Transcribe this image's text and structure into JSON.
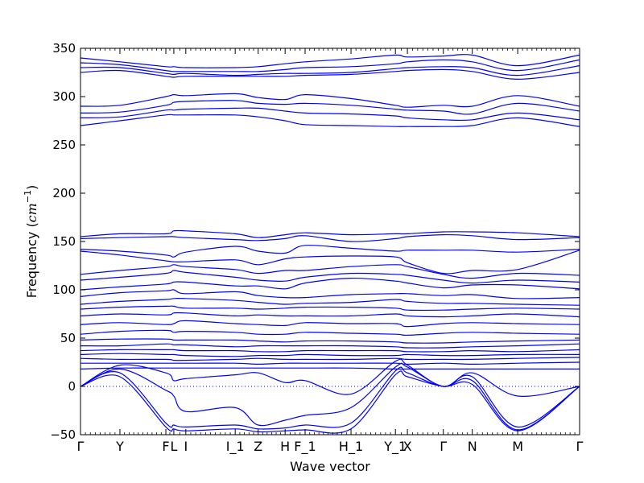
{
  "chart_data": {
    "type": "line",
    "title": "",
    "xlabel": "Wave vector",
    "ylabel_main": "Frequency (",
    "ylabel_unit_base": "cm",
    "ylabel_unit_exp": "−1",
    "ylabel_close": ")",
    "ylim": [
      -50,
      350
    ],
    "yticks": [
      -50,
      0,
      50,
      100,
      150,
      200,
      250,
      300,
      350
    ],
    "xlim": [
      0,
      1
    ],
    "grid": false,
    "zero_line": true,
    "line_color": "#0000ff",
    "high_symmetry_points": [
      {
        "label": "Γ",
        "x": 0.0
      },
      {
        "label": "Y",
        "x": 0.079
      },
      {
        "label": "F",
        "x": 0.171
      },
      {
        "label": "L",
        "x": 0.187
      },
      {
        "label": "I",
        "x": 0.211
      },
      {
        "label": "I_1",
        "x": 0.31
      },
      {
        "label": "Z",
        "x": 0.356
      },
      {
        "label": "H",
        "x": 0.41
      },
      {
        "label": "F_1",
        "x": 0.45
      },
      {
        "label": "H_1",
        "x": 0.542
      },
      {
        "label": "Y_1",
        "x": 0.631
      },
      {
        "label": "X",
        "x": 0.655
      },
      {
        "label": "Γ",
        "x": 0.727
      },
      {
        "label": "N",
        "x": 0.785
      },
      {
        "label": "M",
        "x": 0.876
      },
      {
        "label": "Γ",
        "x": 1.0
      }
    ],
    "series_x": [
      0.0,
      0.079,
      0.171,
      0.187,
      0.211,
      0.31,
      0.356,
      0.41,
      0.45,
      0.542,
      0.631,
      0.655,
      0.727,
      0.785,
      0.876,
      1.0
    ],
    "series": [
      {
        "values": [
          340,
          336,
          331,
          331,
          330,
          330,
          331,
          334,
          336,
          339,
          343,
          341,
          342,
          343,
          332,
          343
        ]
      },
      {
        "values": [
          335,
          333,
          327,
          326,
          326,
          326,
          326,
          328,
          330,
          331,
          334,
          336,
          338,
          336,
          327,
          338
        ]
      },
      {
        "values": [
          330,
          330,
          324,
          323,
          324,
          322,
          323,
          324,
          324,
          325,
          329,
          330,
          331,
          330,
          322,
          332
        ]
      },
      {
        "values": [
          325,
          327,
          321,
          320,
          321,
          321,
          321,
          321,
          322,
          323,
          326,
          327,
          328,
          326,
          318,
          325
        ]
      },
      {
        "values": [
          290,
          291,
          300,
          302,
          301,
          303,
          299,
          297,
          302,
          298,
          291,
          289,
          291,
          290,
          301,
          290
        ]
      },
      {
        "values": [
          283,
          284,
          291,
          294,
          295,
          296,
          293,
          292,
          293,
          291,
          287,
          286,
          285,
          282,
          293,
          285
        ]
      },
      {
        "values": [
          278,
          279,
          286,
          286,
          287,
          288,
          288,
          285,
          283,
          282,
          280,
          278,
          276,
          276,
          283,
          276
        ]
      },
      {
        "values": [
          270,
          275,
          281,
          281,
          281,
          281,
          279,
          275,
          271,
          270,
          269,
          269,
          269,
          270,
          278,
          269
        ]
      },
      {
        "values": [
          155,
          158,
          158,
          161,
          161,
          158,
          154,
          157,
          159,
          157,
          158,
          158,
          160,
          160,
          159,
          155
        ]
      },
      {
        "values": [
          153,
          154,
          155,
          155,
          154,
          152,
          151,
          153,
          156,
          150,
          153,
          155,
          157,
          156,
          152,
          154
        ]
      },
      {
        "values": [
          142,
          140,
          136,
          134,
          139,
          145,
          140,
          138,
          146,
          143,
          140,
          141,
          141,
          141,
          139,
          142
        ]
      },
      {
        "values": [
          140,
          136,
          130,
          129,
          129,
          131,
          126,
          132,
          134,
          135,
          134,
          128,
          117,
          120,
          121,
          141
        ]
      },
      {
        "values": [
          116,
          120,
          124,
          126,
          124,
          121,
          117,
          120,
          120,
          124,
          126,
          124,
          116,
          112,
          117,
          115
        ]
      },
      {
        "values": [
          110,
          113,
          117,
          120,
          118,
          113,
          110,
          109,
          113,
          117,
          116,
          115,
          110,
          107,
          110,
          108
        ]
      },
      {
        "values": [
          100,
          103,
          106,
          108,
          108,
          104,
          104,
          101,
          107,
          112,
          109,
          107,
          102,
          105,
          105,
          101
        ]
      },
      {
        "values": [
          93,
          97,
          99,
          100,
          96,
          98,
          94,
          92,
          92,
          95,
          96,
          96,
          94,
          95,
          91,
          92
        ]
      },
      {
        "values": [
          85,
          88,
          90,
          91,
          91,
          89,
          87,
          85,
          86,
          87,
          90,
          88,
          86,
          86,
          85,
          84
        ]
      },
      {
        "values": [
          80,
          82,
          83,
          83,
          81,
          81,
          80,
          81,
          82,
          82,
          81,
          79,
          79,
          80,
          81,
          80
        ]
      },
      {
        "values": [
          73,
          75,
          74,
          76,
          76,
          73,
          74,
          73,
          73,
          73,
          75,
          73,
          72,
          73,
          75,
          72
        ]
      },
      {
        "values": [
          64,
          66,
          64,
          65,
          68,
          65,
          64,
          63,
          66,
          65,
          65,
          62,
          65,
          66,
          65,
          64
        ]
      },
      {
        "values": [
          54,
          57,
          58,
          56,
          57,
          56,
          54,
          54,
          56,
          55,
          54,
          53,
          55,
          56,
          55,
          54
        ]
      },
      {
        "values": [
          48,
          49,
          49,
          48,
          48,
          48,
          47,
          46,
          47,
          47,
          46,
          45,
          45,
          46,
          47,
          48
        ]
      },
      {
        "values": [
          42,
          42,
          44,
          43,
          43,
          41,
          42,
          42,
          42,
          42,
          41,
          40,
          40,
          41,
          42,
          44
        ]
      },
      {
        "values": [
          37,
          38,
          38,
          38,
          37,
          37,
          36,
          36,
          37,
          37,
          37,
          36,
          36,
          37,
          36,
          38
        ]
      },
      {
        "values": [
          33,
          34,
          33,
          33,
          32,
          31,
          32,
          32,
          33,
          32,
          32,
          33,
          32,
          32,
          33,
          33
        ]
      },
      {
        "values": [
          29,
          28,
          28,
          27,
          27,
          28,
          29,
          28,
          28,
          28,
          29,
          28,
          28,
          28,
          29,
          30
        ]
      },
      {
        "values": [
          24,
          24,
          24,
          24,
          24,
          24,
          23,
          24,
          24,
          24,
          24,
          23,
          24,
          23,
          24,
          25
        ]
      },
      {
        "values": [
          18,
          19,
          19,
          19,
          19,
          19,
          19,
          19,
          19,
          19,
          18,
          18,
          18,
          18,
          18,
          18
        ]
      },
      {
        "values": [
          0,
          22,
          14,
          6,
          8,
          12,
          14,
          4,
          6,
          -8,
          26,
          22,
          0,
          14,
          -10,
          0
        ]
      },
      {
        "values": [
          0,
          18,
          -4,
          -10,
          -26,
          -22,
          -40,
          -35,
          -30,
          -22,
          20,
          20,
          0,
          10,
          -42,
          0
        ]
      },
      {
        "values": [
          0,
          14,
          -38,
          -40,
          -42,
          -40,
          -44,
          -43,
          -40,
          -38,
          16,
          14,
          0,
          6,
          -45,
          0
        ]
      },
      {
        "values": [
          0,
          10,
          -42,
          -44,
          -46,
          -44,
          -47,
          -46,
          -45,
          -44,
          12,
          10,
          0,
          2,
          -46,
          0
        ]
      }
    ]
  }
}
